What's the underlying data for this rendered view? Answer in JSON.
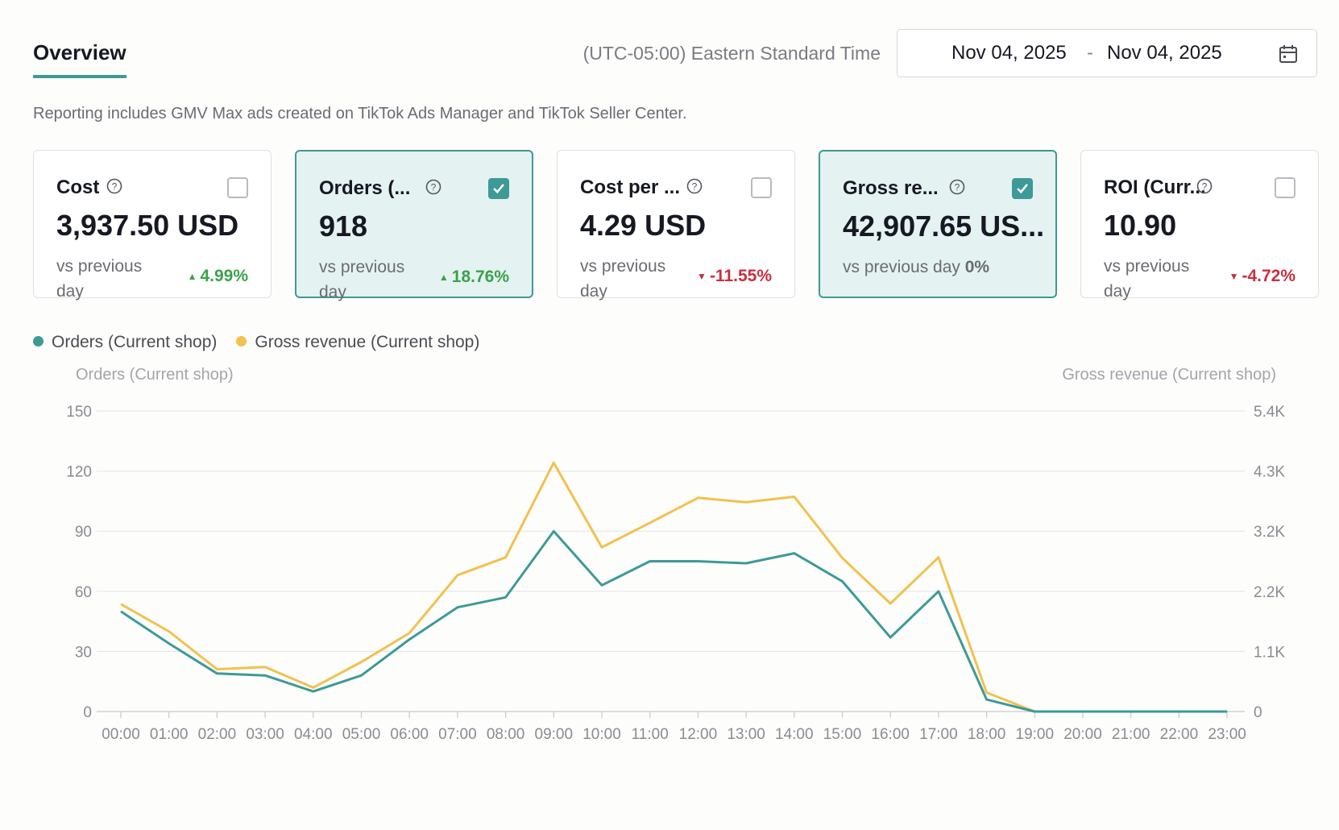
{
  "header": {
    "tab_label": "Overview",
    "timezone": "(UTC-05:00) Eastern Standard Time",
    "date_start": "Nov 04, 2025",
    "date_sep": "-",
    "date_end": "Nov 04, 2025"
  },
  "note": "Reporting includes GMV Max ads created on TikTok Ads Manager and TikTok Seller Center.",
  "cards": [
    {
      "label": "Cost",
      "value": "3,937.50 USD",
      "vs": "vs previous day",
      "change": "4.99%",
      "direction": "up",
      "selected": false,
      "checked": false
    },
    {
      "label": "Orders (...",
      "value": "918",
      "vs": "vs previous day",
      "change": "18.76%",
      "direction": "up",
      "selected": true,
      "checked": true
    },
    {
      "label": "Cost per ...",
      "value": "4.29 USD",
      "vs": "vs previous day",
      "change": "-11.55%",
      "direction": "down",
      "selected": false,
      "checked": false
    },
    {
      "label": "Gross re...",
      "value": "42,907.65 US...",
      "vs": "vs previous day",
      "change": "0%",
      "direction": "flat",
      "selected": true,
      "checked": true
    },
    {
      "label": "ROI (Curr...",
      "value": "10.90",
      "vs": "vs previous day",
      "change": "-4.72%",
      "direction": "down",
      "selected": false,
      "checked": false
    }
  ],
  "legend": [
    {
      "label": "Orders (Current shop)",
      "color": "#3d9a97"
    },
    {
      "label": "Gross revenue (Current shop)",
      "color": "#f2c14e"
    }
  ],
  "chart_data": {
    "type": "line",
    "left_axis_title": "Orders (Current shop)",
    "right_axis_title": "Gross revenue (Current shop)",
    "x": [
      "00:00",
      "01:00",
      "02:00",
      "03:00",
      "04:00",
      "05:00",
      "06:00",
      "07:00",
      "08:00",
      "09:00",
      "10:00",
      "11:00",
      "12:00",
      "13:00",
      "14:00",
      "15:00",
      "16:00",
      "17:00",
      "18:00",
      "19:00",
      "20:00",
      "21:00",
      "22:00",
      "23:00"
    ],
    "left_ticks": [
      "0",
      "30",
      "60",
      "90",
      "120",
      "150"
    ],
    "right_ticks": [
      "0",
      "1.1K",
      "2.2K",
      "3.2K",
      "4.3K",
      "5.4K"
    ],
    "ylim_left": [
      0,
      150
    ],
    "ylim_right": [
      0,
      5400
    ],
    "grid": true,
    "series": [
      {
        "name": "Orders (Current shop)",
        "axis": "left",
        "color": "#3d9a97",
        "values": [
          50,
          34,
          19,
          18,
          10,
          18,
          36,
          52,
          57,
          90,
          63,
          75,
          75,
          74,
          79,
          65,
          37,
          60,
          6,
          0,
          0,
          0,
          0,
          0
        ]
      },
      {
        "name": "Gross revenue (Current shop)",
        "axis": "right",
        "color": "#f2c14e",
        "values": [
          1930,
          1440,
          760,
          800,
          430,
          890,
          1410,
          2450,
          2770,
          4470,
          2950,
          3390,
          3840,
          3760,
          3860,
          2760,
          1940,
          2770,
          340,
          0,
          0,
          0,
          0,
          0
        ]
      }
    ]
  }
}
